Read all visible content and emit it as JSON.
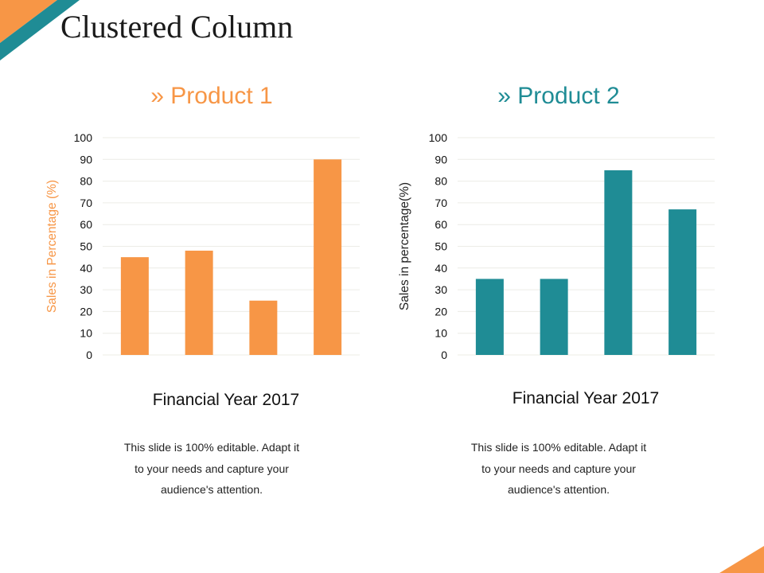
{
  "slide_title": "Clustered Column",
  "colors": {
    "orange": "#F79646",
    "teal": "#1F8C95",
    "grid": "#ECECE6"
  },
  "chart_data": [
    {
      "type": "bar",
      "title": "» Product 1",
      "xlabel": "Financial Year 2017",
      "ylabel": "Sales in Percentage (%)",
      "ylim": [
        0,
        100
      ],
      "yticks": [
        "0",
        "10",
        "20",
        "30",
        "40",
        "50",
        "60",
        "70",
        "80",
        "90",
        "100"
      ],
      "values": [
        45,
        48,
        25,
        90
      ],
      "color": "#F79646",
      "grid": true
    },
    {
      "type": "bar",
      "title": "» Product 2",
      "xlabel": "Financial Year 2017",
      "ylabel": "Sales in percentage(%)",
      "ylim": [
        0,
        100
      ],
      "yticks": [
        "0",
        "10",
        "20",
        "30",
        "40",
        "50",
        "60",
        "70",
        "80",
        "90",
        "100"
      ],
      "values": [
        35,
        35,
        85,
        67
      ],
      "color": "#1F8C95",
      "grid": true
    }
  ],
  "descriptions": [
    {
      "lines": [
        "This slide is 100% editable. Adapt it",
        "to your needs and capture your",
        "audience's attention."
      ]
    },
    {
      "lines": [
        "This slide is 100% editable. Adapt it",
        "to your needs and capture your",
        "audience's attention."
      ]
    }
  ]
}
